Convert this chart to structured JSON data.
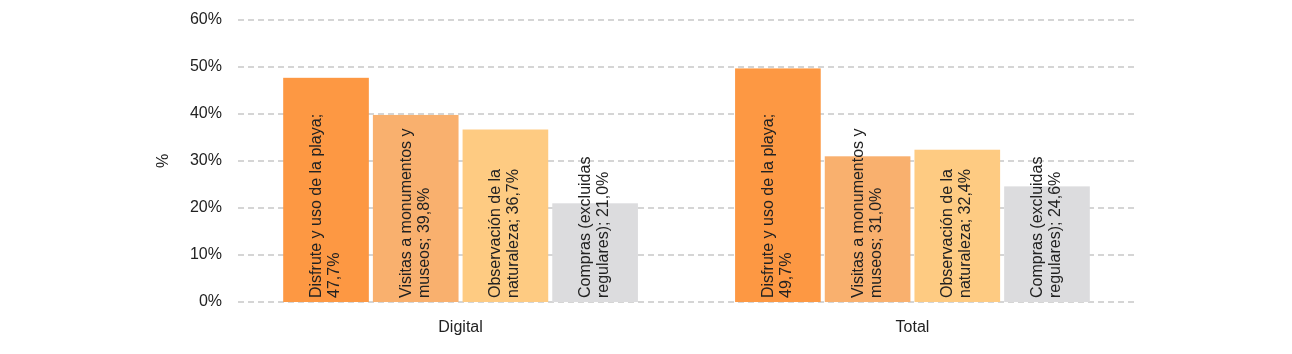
{
  "chart_data": {
    "type": "bar",
    "ylabel": "%",
    "categories": [
      "Digital",
      "Total"
    ],
    "series": [
      {
        "color": "#fd9843",
        "values": [
          47.7,
          49.7
        ],
        "value_labels": [
          "Disfrute y uso de la playa; 47,7%",
          "Disfrute y uso de la playa; 49,7%"
        ]
      },
      {
        "color": "#f9b06e",
        "values": [
          39.8,
          31.0
        ],
        "value_labels": [
          "Visitas a monumentos y museos; 39,8%",
          "Visitas a monumentos y museos; 31,0%"
        ]
      },
      {
        "color": "#fecb82",
        "values": [
          36.7,
          32.4
        ],
        "value_labels": [
          "Observación de la naturaleza; 36,7%",
          "Observación de la naturaleza; 32,4%"
        ]
      },
      {
        "color": "#dcdcde",
        "values": [
          21.0,
          24.6
        ],
        "value_labels": [
          "Compras (excluidas regulares); 21,0%",
          "Compras (excluidas regulares); 24,6%"
        ]
      }
    ],
    "ylim": [
      0,
      60
    ],
    "yticks": [
      {
        "value": 0,
        "label": "0%"
      },
      {
        "value": 10,
        "label": "10%"
      },
      {
        "value": 20,
        "label": "20%"
      },
      {
        "value": 30,
        "label": "30%"
      },
      {
        "value": 40,
        "label": "40%"
      },
      {
        "value": 50,
        "label": "50%"
      },
      {
        "value": 60,
        "label": "60%"
      }
    ],
    "grid": "y"
  }
}
